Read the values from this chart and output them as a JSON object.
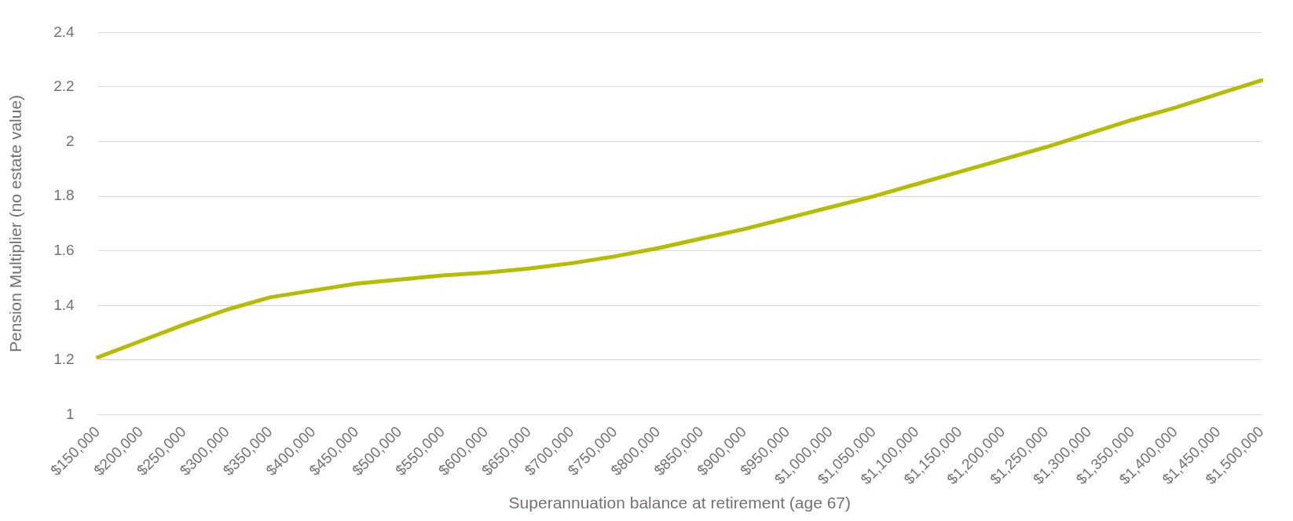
{
  "chart_data": {
    "type": "line",
    "xlabel": "Superannuation balance at retirement (age 67)",
    "ylabel": "Pension Multiplier (no estate value)",
    "categories": [
      "$150,000",
      "$200,000",
      "$250,000",
      "$300,000",
      "$350,000",
      "$400,000",
      "$450,000",
      "$500,000",
      "$550,000",
      "$600,000",
      "$650,000",
      "$700,000",
      "$750,000",
      "$800,000",
      "$850,000",
      "$900,000",
      "$950,000",
      "$1,000,000",
      "$1,050,000",
      "$1,100,000",
      "$1,150,000",
      "$1,200,000",
      "$1,250,000",
      "$1,300,000",
      "$1,350,000",
      "$1,400,000",
      "$1,450,000",
      "$1,500,000"
    ],
    "series": [
      {
        "color": "#b5bd00",
        "values": [
          1.21,
          1.27,
          1.33,
          1.385,
          1.43,
          1.455,
          1.48,
          1.495,
          1.51,
          1.52,
          1.535,
          1.555,
          1.58,
          1.61,
          1.645,
          1.68,
          1.72,
          1.76,
          1.8,
          1.845,
          1.89,
          1.935,
          1.98,
          2.03,
          2.08,
          2.125,
          2.175,
          2.225
        ]
      }
    ],
    "ylim": [
      1,
      2.4
    ],
    "yticks": [
      1,
      1.2,
      1.4,
      1.6,
      1.8,
      2,
      2.2,
      2.4
    ],
    "grid": "y",
    "legend": false,
    "marker": "none",
    "line_style": "solid"
  }
}
